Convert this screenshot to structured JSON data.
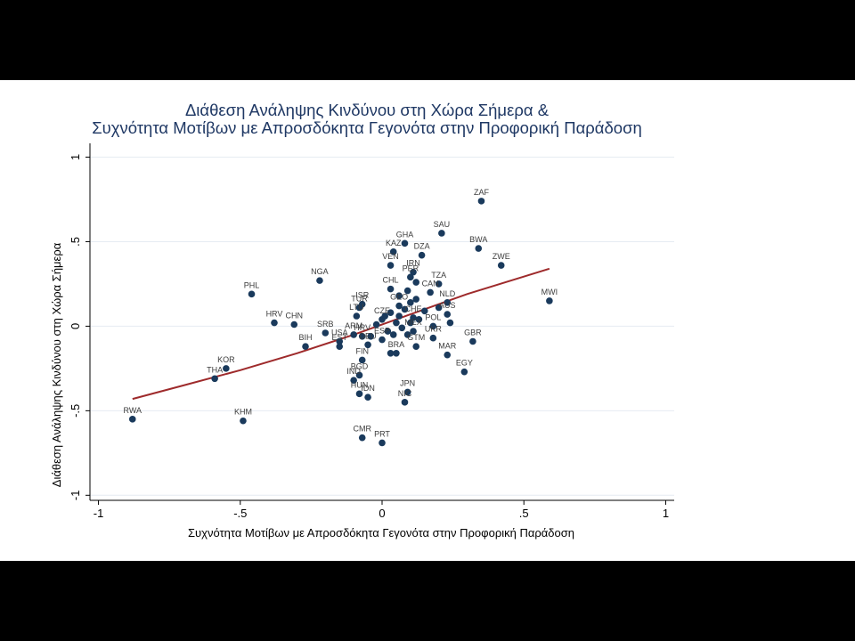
{
  "chart_data": {
    "type": "scatter",
    "title": [
      "Διάθεση Ανάληψης Κινδύνου στη Χώρα Σήμερα &",
      "Συχνότητα Μοτίβων με Απροσδόκητα Γεγονότα στην Προφορική Παράδοση"
    ],
    "xlabel": "Συχνότητα Μοτίβων με Απροσδόκητα Γεγονότα στην Προφορική Παράδοση",
    "ylabel": "Διάθεση Ανάληψης Κινδύνου στη Χώρα Σήμερα",
    "xlim": [
      -1.03,
      1.03
    ],
    "ylim": [
      -1.03,
      1.05
    ],
    "xticks": [
      {
        "v": -1,
        "label": "-1"
      },
      {
        "v": -0.5,
        "label": "-.5"
      },
      {
        "v": 0,
        "label": "0"
      },
      {
        "v": 0.5,
        "label": ".5"
      },
      {
        "v": 1,
        "label": "1"
      }
    ],
    "yticks": [
      {
        "v": -1,
        "label": "-1"
      },
      {
        "v": -0.5,
        "label": "-.5"
      },
      {
        "v": 0,
        "label": "0"
      },
      {
        "v": 0.5,
        "label": ".5"
      },
      {
        "v": 1,
        "label": "1"
      }
    ],
    "grid": true,
    "colors": {
      "points": "#1a3a5c",
      "fit": "#9e2a2b",
      "title": "#1f3864"
    },
    "points": [
      {
        "label": "ZAF",
        "x": 0.35,
        "y": 0.74
      },
      {
        "label": "SAU",
        "x": 0.21,
        "y": 0.55
      },
      {
        "label": "GHA",
        "x": 0.08,
        "y": 0.49
      },
      {
        "label": "BWA",
        "x": 0.34,
        "y": 0.46
      },
      {
        "label": "KAZ",
        "x": 0.04,
        "y": 0.44
      },
      {
        "label": "DZA",
        "x": 0.14,
        "y": 0.42
      },
      {
        "label": "VEN",
        "x": 0.03,
        "y": 0.36
      },
      {
        "label": "ZWE",
        "x": 0.42,
        "y": 0.36
      },
      {
        "label": "IRN",
        "x": 0.11,
        "y": 0.32
      },
      {
        "label": "PER",
        "x": 0.1,
        "y": 0.29
      },
      {
        "label": "NGA",
        "x": -0.22,
        "y": 0.27
      },
      {
        "label": "TZA",
        "x": 0.2,
        "y": 0.25
      },
      {
        "label": "CHL",
        "x": 0.03,
        "y": 0.22
      },
      {
        "label": "CAN",
        "x": 0.17,
        "y": 0.2
      },
      {
        "label": "PHL",
        "x": -0.46,
        "y": 0.19
      },
      {
        "label": "MWI",
        "x": 0.59,
        "y": 0.15
      },
      {
        "label": "NLD",
        "x": 0.23,
        "y": 0.14
      },
      {
        "label": "ISR",
        "x": -0.07,
        "y": 0.13
      },
      {
        "label": "TUR",
        "x": -0.08,
        "y": 0.11
      },
      {
        "label": "GEO",
        "x": 0.06,
        "y": 0.12
      },
      {
        "label": "LTU",
        "x": -0.09,
        "y": 0.06
      },
      {
        "label": "AUS",
        "x": 0.23,
        "y": 0.07
      },
      {
        "label": "CZE",
        "x": 0.0,
        "y": 0.04
      },
      {
        "label": "CHE",
        "x": 0.11,
        "y": 0.05
      },
      {
        "label": "HRV",
        "x": -0.38,
        "y": 0.02
      },
      {
        "label": "CHN",
        "x": -0.31,
        "y": 0.01
      },
      {
        "label": "POL",
        "x": 0.18,
        "y": 0.0
      },
      {
        "label": "SRB",
        "x": -0.2,
        "y": -0.04
      },
      {
        "label": "ARM",
        "x": -0.1,
        "y": -0.05
      },
      {
        "label": "ESP",
        "x": 0.0,
        "y": -0.08
      },
      {
        "label": "MEX",
        "x": 0.11,
        "y": -0.03
      },
      {
        "label": "HRV",
        "x": -0.07,
        "y": -0.06
      },
      {
        "label": "USA",
        "x": -0.15,
        "y": -0.09
      },
      {
        "label": "GBR",
        "x": 0.32,
        "y": -0.09
      },
      {
        "label": "BIH",
        "x": -0.27,
        "y": -0.12
      },
      {
        "label": "EST",
        "x": -0.15,
        "y": -0.12
      },
      {
        "label": "DEU",
        "x": -0.05,
        "y": -0.11
      },
      {
        "label": "UKR",
        "x": 0.18,
        "y": -0.07
      },
      {
        "label": "GTM",
        "x": 0.12,
        "y": -0.12
      },
      {
        "label": "BRA",
        "x": 0.05,
        "y": -0.16
      },
      {
        "label": "MAR",
        "x": 0.23,
        "y": -0.17
      },
      {
        "label": "FIN",
        "x": -0.07,
        "y": -0.2
      },
      {
        "label": "KOR",
        "x": -0.55,
        "y": -0.25
      },
      {
        "label": "EGY",
        "x": 0.29,
        "y": -0.27
      },
      {
        "label": "BGD",
        "x": -0.08,
        "y": -0.29
      },
      {
        "label": "IND",
        "x": -0.1,
        "y": -0.32
      },
      {
        "label": "THA",
        "x": -0.59,
        "y": -0.31
      },
      {
        "label": "HUN",
        "x": -0.08,
        "y": -0.4
      },
      {
        "label": "IDN",
        "x": -0.05,
        "y": -0.42
      },
      {
        "label": "JPN",
        "x": 0.09,
        "y": -0.39
      },
      {
        "label": "NIC",
        "x": 0.08,
        "y": -0.45
      },
      {
        "label": "RWA",
        "x": -0.88,
        "y": -0.55
      },
      {
        "label": "KHM",
        "x": -0.49,
        "y": -0.56
      },
      {
        "label": "CMR",
        "x": -0.07,
        "y": -0.66
      },
      {
        "label": "PRT",
        "x": 0.0,
        "y": -0.69
      }
    ],
    "unlabeled_points": [
      {
        "x": 0.03,
        "y": 0.08
      },
      {
        "x": 0.06,
        "y": 0.06
      },
      {
        "x": 0.08,
        "y": 0.1
      },
      {
        "x": 0.1,
        "y": 0.14
      },
      {
        "x": 0.12,
        "y": 0.16
      },
      {
        "x": 0.05,
        "y": 0.02
      },
      {
        "x": 0.07,
        "y": -0.01
      },
      {
        "x": 0.1,
        "y": 0.02
      },
      {
        "x": 0.13,
        "y": 0.04
      },
      {
        "x": 0.02,
        "y": -0.03
      },
      {
        "x": 0.09,
        "y": -0.05
      },
      {
        "x": 0.04,
        "y": -0.05
      },
      {
        "x": 0.15,
        "y": 0.09
      },
      {
        "x": 0.2,
        "y": 0.11
      },
      {
        "x": 0.24,
        "y": 0.02
      },
      {
        "x": -0.02,
        "y": 0.01
      },
      {
        "x": 0.06,
        "y": 0.18
      },
      {
        "x": 0.09,
        "y": 0.21
      },
      {
        "x": 0.12,
        "y": 0.26
      },
      {
        "x": 0.03,
        "y": -0.16
      },
      {
        "x": -0.04,
        "y": -0.06
      },
      {
        "x": 0.01,
        "y": 0.06
      }
    ],
    "fit_line": [
      {
        "x": -0.88,
        "y": -0.43
      },
      {
        "x": -0.7,
        "y": -0.35
      },
      {
        "x": -0.5,
        "y": -0.26
      },
      {
        "x": -0.3,
        "y": -0.16
      },
      {
        "x": -0.1,
        "y": -0.05
      },
      {
        "x": 0.1,
        "y": 0.07
      },
      {
        "x": 0.3,
        "y": 0.19
      },
      {
        "x": 0.59,
        "y": 0.34
      }
    ]
  }
}
